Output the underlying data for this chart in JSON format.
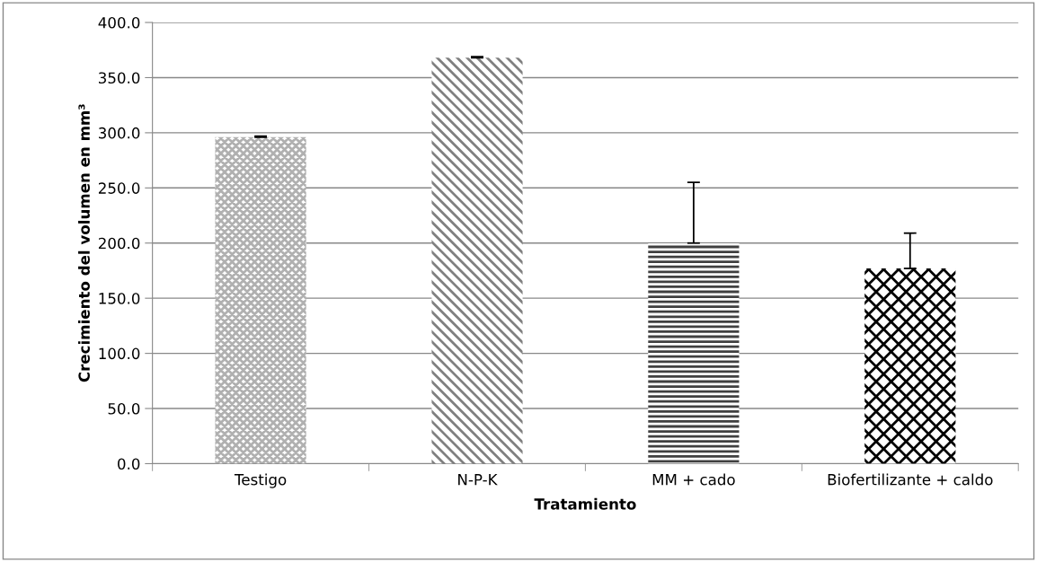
{
  "chart_data": {
    "type": "bar",
    "xlabel": "Tratamiento",
    "ylabel": "Crecimiento del volumen en mm³",
    "categories": [
      "Testigo",
      "N-P-K",
      "MM + cado",
      "Biofertilizante + caldo"
    ],
    "values": [
      296,
      368,
      200,
      177
    ],
    "errors": [
      [
        296,
        297
      ],
      [
        368,
        369
      ],
      [
        200,
        255
      ],
      [
        177,
        209
      ]
    ],
    "colors": [
      "#b0b0b0",
      "#808080",
      "#404040",
      "#000000"
    ],
    "ylim": [
      0,
      400
    ],
    "yticks": [
      {
        "value": 0,
        "label": "0.0"
      },
      {
        "value": 50,
        "label": "50.0"
      },
      {
        "value": 100,
        "label": "100.0"
      },
      {
        "value": 150,
        "label": "150.0"
      },
      {
        "value": 200,
        "label": "200.0"
      },
      {
        "value": 250,
        "label": "250.0"
      },
      {
        "value": 300,
        "label": "300.0"
      },
      {
        "value": 350,
        "label": "350.0"
      },
      {
        "value": 400,
        "label": "400.0"
      }
    ],
    "grid": "y",
    "legend": false
  }
}
